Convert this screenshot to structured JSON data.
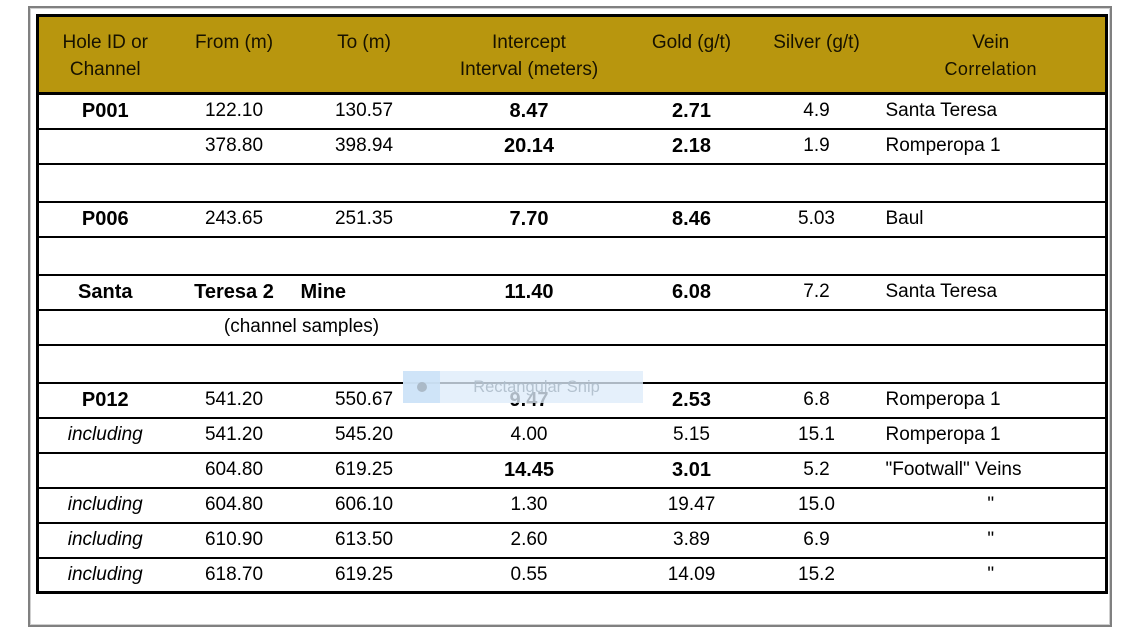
{
  "colors": {
    "header_bg": "#B8960E",
    "table_border": "#000000",
    "outer_frame": "#808080",
    "snip_text": "#AFBECB"
  },
  "table": {
    "header": {
      "cells": [
        {
          "line1": "Hole ID or",
          "line2": "Channel"
        },
        {
          "line1": "From (m)",
          "line2": ""
        },
        {
          "line1": "To (m)",
          "line2": ""
        },
        {
          "line1": "Intercept",
          "line2": "Interval (meters)"
        },
        {
          "line1": "Gold (g/t)",
          "line2": ""
        },
        {
          "line1": "Silver (g/t)",
          "line2": ""
        },
        {
          "line1": "Vein",
          "line2": "Correlation"
        }
      ]
    },
    "rows": [
      {
        "type": "data",
        "hole": "P001",
        "hole_bold": true,
        "from": "122.10",
        "to": "130.57",
        "intercept": "8.47",
        "intercept_bold": true,
        "gold": "2.71",
        "gold_bold": true,
        "silver": "4.9",
        "vein": "Santa Teresa"
      },
      {
        "type": "data",
        "hole": "",
        "from": "378.80",
        "to": "398.94",
        "intercept": "20.14",
        "intercept_bold": true,
        "gold": "2.18",
        "gold_bold": true,
        "silver": "1.9",
        "vein": "Romperopa 1"
      },
      {
        "type": "empty"
      },
      {
        "type": "data",
        "hole": "P006",
        "hole_bold": true,
        "from": "243.65",
        "to": "251.35",
        "intercept": "7.70",
        "intercept_bold": true,
        "gold": "8.46",
        "gold_bold": true,
        "silver": "5.03",
        "vein": "Baul"
      },
      {
        "type": "empty"
      },
      {
        "type": "data",
        "hole": "Santa",
        "hole_bold": true,
        "from": "Teresa 2",
        "from_bold": true,
        "to": "Mine",
        "to_bold": true,
        "to_left": true,
        "intercept": "11.40",
        "intercept_bold": true,
        "gold": "6.08",
        "gold_bold": true,
        "silver": "7.2",
        "vein": "Santa Teresa"
      },
      {
        "type": "span",
        "text": "(channel samples)"
      },
      {
        "type": "empty"
      },
      {
        "type": "data",
        "hole": "P012",
        "hole_bold": true,
        "from": "541.20",
        "to": "550.67",
        "intercept": "9.47",
        "intercept_bold": true,
        "gold": "2.53",
        "gold_bold": true,
        "silver": "6.8",
        "vein": "Romperopa 1"
      },
      {
        "type": "data",
        "hole": "including",
        "hole_italic": true,
        "from": "541.20",
        "to": "545.20",
        "intercept": "4.00",
        "gold": "5.15",
        "silver": "15.1",
        "vein": "Romperopa 1"
      },
      {
        "type": "data",
        "hole": "",
        "from": "604.80",
        "to": "619.25",
        "intercept": "14.45",
        "intercept_bold": true,
        "gold": "3.01",
        "gold_bold": true,
        "silver": "5.2",
        "vein": "\"Footwall\" Veins"
      },
      {
        "type": "data",
        "hole": "including",
        "hole_italic": true,
        "from": "604.80",
        "to": "606.10",
        "intercept": "1.30",
        "gold": "19.47",
        "silver": "15.0",
        "vein": "\"",
        "vein_center": true
      },
      {
        "type": "data",
        "hole": "including",
        "hole_italic": true,
        "from": "610.90",
        "to": "613.50",
        "intercept": "2.60",
        "gold": "3.89",
        "silver": "6.9",
        "vein": "\"",
        "vein_center": true
      },
      {
        "type": "data",
        "hole": "including",
        "hole_italic": true,
        "from": "618.70",
        "to": "619.25",
        "intercept": "0.55",
        "gold": "14.09",
        "silver": "15.2",
        "vein": "\"",
        "vein_center": true
      }
    ]
  },
  "snip_tooltip": {
    "label": "Rectangular Snip"
  }
}
